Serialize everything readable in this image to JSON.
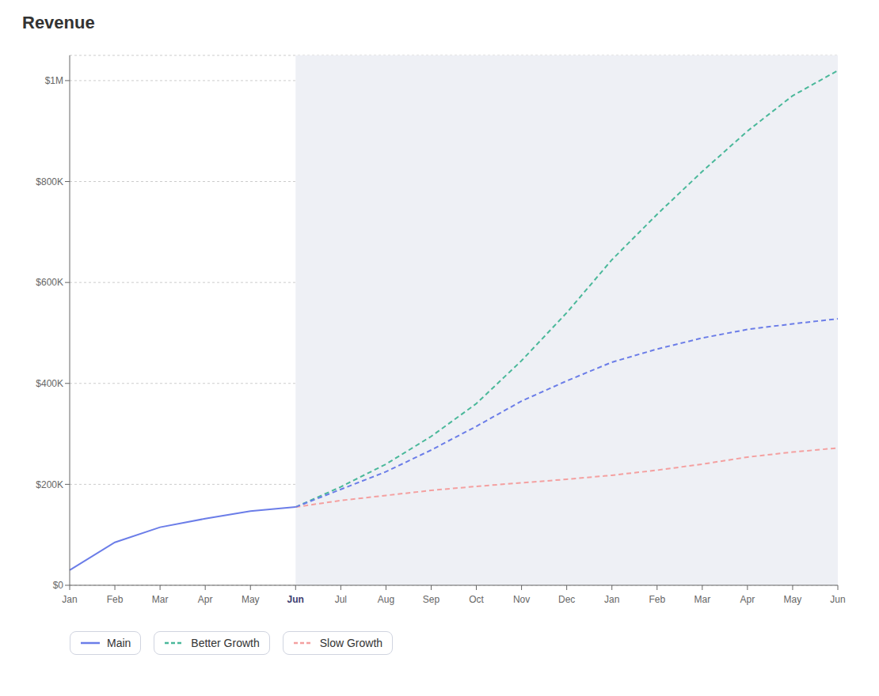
{
  "chart_data": {
    "type": "line",
    "title": "Revenue",
    "categories": [
      "Jan",
      "Feb",
      "Mar",
      "Apr",
      "May",
      "Jun",
      "Jul",
      "Aug",
      "Sep",
      "Oct",
      "Nov",
      "Dec",
      "Jan",
      "Feb",
      "Mar",
      "Apr",
      "May",
      "Jun"
    ],
    "series": [
      {
        "name": "Main",
        "color": "#6b7de8",
        "line_style": "solid",
        "values": [
          30000,
          85000,
          115000,
          132000,
          147000,
          155000,
          null,
          null,
          null,
          null,
          null,
          null,
          null,
          null,
          null,
          null,
          null,
          null
        ],
        "forecast_values": [
          null,
          null,
          null,
          null,
          null,
          155000,
          190000,
          225000,
          268000,
          315000,
          365000,
          405000,
          442000,
          468000,
          490000,
          507000,
          518000,
          528000
        ]
      },
      {
        "name": "Better Growth",
        "color": "#4ab89a",
        "line_style": "dashed",
        "values": [
          null,
          null,
          null,
          null,
          null,
          155000,
          195000,
          240000,
          295000,
          360000,
          445000,
          540000,
          645000,
          735000,
          820000,
          900000,
          970000,
          1020000
        ]
      },
      {
        "name": "Slow Growth",
        "color": "#f4a0a0",
        "line_style": "dashed",
        "values": [
          null,
          null,
          null,
          null,
          null,
          155000,
          168000,
          178000,
          188000,
          196000,
          203000,
          210000,
          218000,
          228000,
          240000,
          254000,
          264000,
          272000
        ]
      }
    ],
    "ylim": [
      0,
      1050000
    ],
    "yticks": [
      {
        "value": 0,
        "label": "$0"
      },
      {
        "value": 200000,
        "label": "$200K"
      },
      {
        "value": 400000,
        "label": "$400K"
      },
      {
        "value": 600000,
        "label": "$600K"
      },
      {
        "value": 800000,
        "label": "$800K"
      },
      {
        "value": 1000000,
        "label": "$1M"
      }
    ],
    "grid": true,
    "legend": "bottom"
  }
}
